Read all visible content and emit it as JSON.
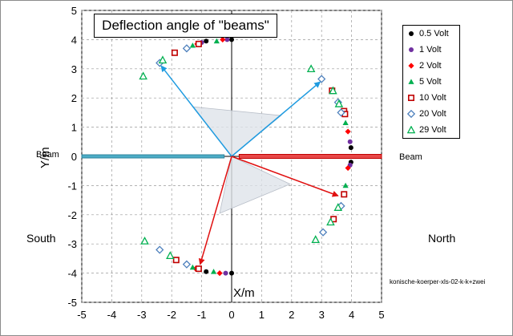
{
  "chart_data": {
    "type": "scatter",
    "title": "Deflection angle of \"beams\"",
    "xlabel": "X/m",
    "ylabel": "Y/m",
    "xlim": [
      -5,
      5
    ],
    "ylim": [
      -5,
      5
    ],
    "x_ticks": [
      "-5",
      "-4",
      "-3",
      "-2",
      "-1",
      "0",
      "1",
      "2",
      "3",
      "4",
      "5"
    ],
    "y_ticks": [
      "5",
      "4",
      "3",
      "2",
      "1",
      "0",
      "-1",
      "-2",
      "-3",
      "-4",
      "-5"
    ],
    "grid": "on",
    "legend_position": "right",
    "annotations": {
      "beam_left": "Beam",
      "beam_right": "Beam",
      "south": "South",
      "north": "North",
      "source": "konische-koerper-xls-02-k-k+zwei"
    },
    "series": [
      {
        "name": "0.5 Volt",
        "marker": "circle",
        "color": "#000000",
        "points": [
          [
            -0.85,
            3.95
          ],
          [
            0,
            4
          ],
          [
            3.98,
            0.3
          ],
          [
            3.98,
            -0.2
          ],
          [
            0,
            -4
          ],
          [
            -0.85,
            -3.95
          ]
        ]
      },
      {
        "name": "1 Volt",
        "marker": "circle",
        "color": "#7030a0",
        "points": [
          [
            -1,
            3.9
          ],
          [
            -0.15,
            4
          ],
          [
            3.95,
            0.5
          ],
          [
            3.95,
            -0.3
          ],
          [
            -0.2,
            -4
          ],
          [
            -1.1,
            -3.85
          ]
        ]
      },
      {
        "name": "2 Volt",
        "marker": "diamond",
        "color": "#ff0000",
        "points": [
          [
            -1.15,
            3.85
          ],
          [
            -0.3,
            4
          ],
          [
            3.88,
            0.85
          ],
          [
            3.88,
            -0.4
          ],
          [
            -0.4,
            -4
          ],
          [
            -1.2,
            -3.85
          ]
        ]
      },
      {
        "name": "5 Volt",
        "marker": "triangle",
        "color": "#00b050",
        "points": [
          [
            -1.3,
            3.8
          ],
          [
            -0.5,
            3.95
          ],
          [
            3.8,
            1.15
          ],
          [
            3.8,
            -1
          ],
          [
            -0.6,
            -3.95
          ],
          [
            -1.3,
            -3.8
          ]
        ]
      },
      {
        "name": "10 Volt",
        "marker": "square",
        "color": "#c00000",
        "points": [
          [
            -1.1,
            3.85
          ],
          [
            -1.9,
            3.55
          ],
          [
            3.35,
            2.25
          ],
          [
            3.75,
            1.55
          ],
          [
            3.78,
            1.45
          ],
          [
            3.75,
            -1.3
          ],
          [
            3.4,
            -2.15
          ],
          [
            -1.85,
            -3.55
          ],
          [
            -1.1,
            -3.85
          ]
        ]
      },
      {
        "name": "20 Volt",
        "marker": "diamond-open",
        "color": "#4f81bd",
        "points": [
          [
            -1.5,
            3.7
          ],
          [
            -2.4,
            3.2
          ],
          [
            3,
            2.65
          ],
          [
            3.55,
            1.85
          ],
          [
            3.65,
            1.5
          ],
          [
            3.65,
            -1.7
          ],
          [
            3.05,
            -2.6
          ],
          [
            -2.4,
            -3.2
          ],
          [
            -1.5,
            -3.7
          ]
        ]
      },
      {
        "name": "29 Volt",
        "marker": "triangle-open",
        "color": "#00b050",
        "points": [
          [
            -2.3,
            3.3
          ],
          [
            -2.95,
            2.75
          ],
          [
            2.65,
            3
          ],
          [
            3.38,
            2.25
          ],
          [
            3.58,
            1.8
          ],
          [
            3.55,
            -1.75
          ],
          [
            3.3,
            -2.25
          ],
          [
            2.8,
            -2.85
          ],
          [
            -2.05,
            -3.4
          ],
          [
            -2.9,
            -2.9
          ]
        ]
      }
    ]
  }
}
